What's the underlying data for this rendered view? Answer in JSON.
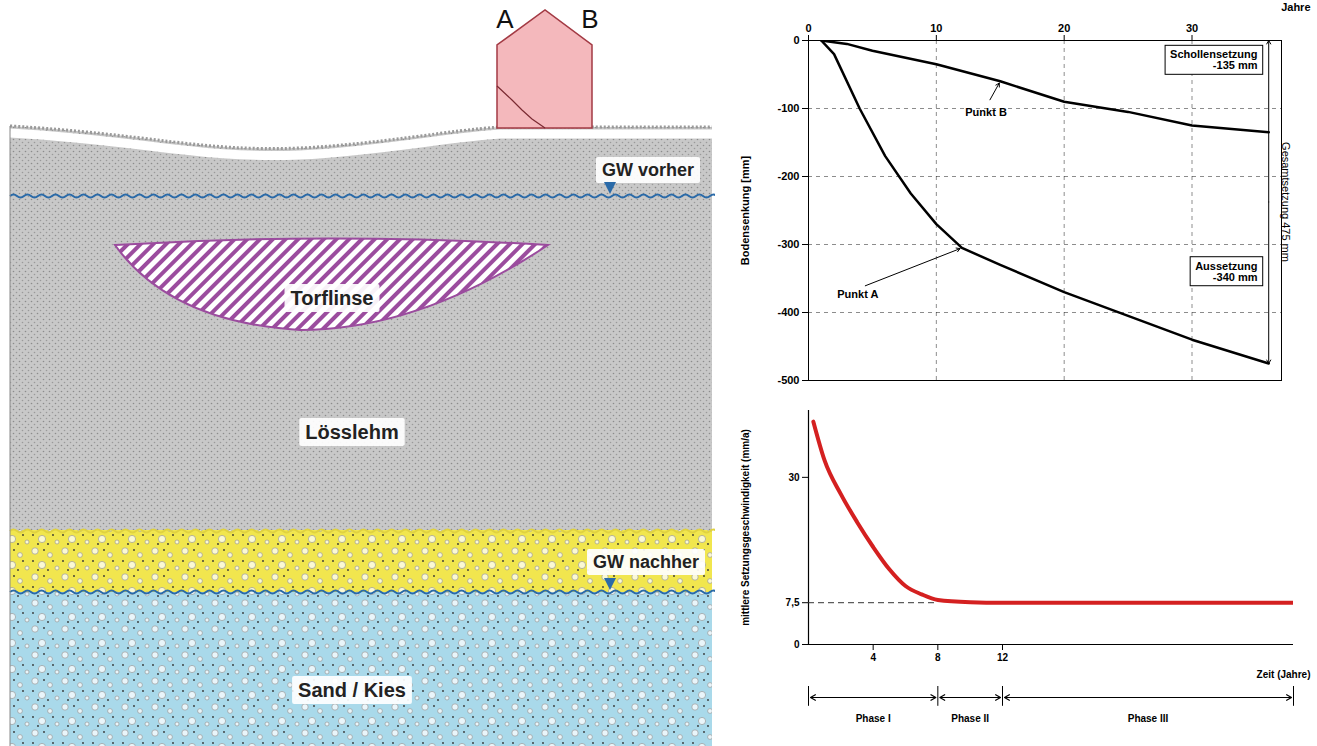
{
  "diagram": {
    "house": {
      "corners": [
        "A",
        "B"
      ]
    },
    "groundwater": {
      "before": "GW vorher",
      "after": "GW nachher"
    },
    "lens": "Torflinse",
    "layers": [
      "Lösslehm",
      "Sand / Kies"
    ]
  },
  "chart_data": [
    {
      "type": "line",
      "x_label": "Jahre",
      "y_label": "Bodensenkung [mm]",
      "xlim": [
        0,
        37
      ],
      "xticks": [
        0,
        10,
        20,
        30
      ],
      "ylim": [
        -500,
        0
      ],
      "yticks": [
        0,
        -100,
        -200,
        -300,
        -400,
        -500
      ],
      "grid": true,
      "series": [
        {
          "name": "Punkt B",
          "color": "#000000",
          "x": [
            1,
            3,
            5,
            10,
            15,
            20,
            25,
            30,
            36
          ],
          "values": [
            0,
            -5,
            -15,
            -35,
            -60,
            -90,
            -105,
            -125,
            -135
          ]
        },
        {
          "name": "Punkt A",
          "color": "#000000",
          "x": [
            1,
            2,
            4,
            6,
            8,
            10,
            12,
            15,
            20,
            25,
            30,
            36
          ],
          "values": [
            0,
            -20,
            -100,
            -170,
            -225,
            -270,
            -305,
            -330,
            -370,
            -405,
            -440,
            -475
          ]
        }
      ],
      "annotations": [
        {
          "title": "Schollensetzung",
          "label": "-135 mm",
          "value": -135
        },
        {
          "title": "Aussetzung",
          "label": "-340 mm",
          "value": -340
        },
        {
          "title": "Gesamtsetzung",
          "label": "475 mm",
          "value": 475
        }
      ]
    },
    {
      "type": "line",
      "x_label": "Zeit (Jahre)",
      "y_label": "mittlere Setzungsgeschwindigkeit (mm/a)",
      "xlim": [
        0,
        30
      ],
      "xticks": [
        4,
        8,
        12
      ],
      "ylim": [
        0,
        42
      ],
      "yticks": [
        0,
        {
          "value": 7.5,
          "label": "7,5"
        },
        30
      ],
      "grid": false,
      "series": [
        {
          "color": "#d42020",
          "x": [
            0.3,
            1,
            2,
            3,
            4,
            5,
            6,
            7,
            8,
            10,
            12,
            20,
            30
          ],
          "values": [
            40,
            33,
            27,
            22,
            17.5,
            13.5,
            10.5,
            9,
            8,
            7.6,
            7.5,
            7.5,
            7.5
          ]
        }
      ],
      "reference_line": {
        "y": 7.5,
        "x": [
          0,
          8
        ],
        "line_style": "dashed"
      },
      "phases": [
        {
          "label": "Phase I",
          "x": [
            0,
            8
          ]
        },
        {
          "label": "Phase II",
          "x": [
            8,
            12
          ]
        },
        {
          "label": "Phase III",
          "x": [
            12,
            30
          ]
        }
      ]
    }
  ]
}
